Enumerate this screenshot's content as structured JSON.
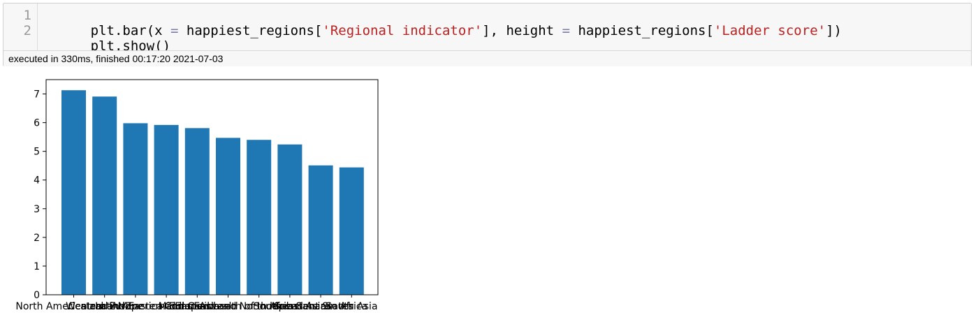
{
  "cell": {
    "lines": [
      {
        "number": "1",
        "parts": [
          {
            "text": "plt.bar(x ",
            "cls": ""
          },
          {
            "text": "=",
            "cls": "tok-op"
          },
          {
            "text": " happiest_regions[",
            "cls": ""
          },
          {
            "text": "'Regional indicator'",
            "cls": "tok-str"
          },
          {
            "text": "], height ",
            "cls": ""
          },
          {
            "text": "=",
            "cls": "tok-op"
          },
          {
            "text": " happiest_regions[",
            "cls": ""
          },
          {
            "text": "'Ladder score'",
            "cls": "tok-str"
          },
          {
            "text": "])",
            "cls": ""
          }
        ]
      },
      {
        "number": "2",
        "parts": [
          {
            "text": "plt.show()",
            "cls": ""
          }
        ]
      }
    ],
    "execution_status": "executed in 330ms, finished 00:17:20 2021-07-03"
  },
  "chart_data": {
    "type": "bar",
    "categories": [
      "North America and ANZ",
      "Western Europe",
      "Central and Eastern Europe",
      "Latin America and Caribbean",
      "East Asia",
      "Middle East and North Africa",
      "Commonwealth of Independent States",
      "Southeast Asia",
      "Sub-Saharan Africa",
      "South Asia"
    ],
    "values": [
      7.13,
      6.91,
      5.98,
      5.92,
      5.81,
      5.47,
      5.4,
      5.24,
      4.51,
      4.44
    ],
    "color": "#1f77b4",
    "ylim": [
      0,
      7.5
    ],
    "yticks": [
      0,
      1,
      2,
      3,
      4,
      5,
      6,
      7
    ],
    "title": "",
    "xlabel": "",
    "ylabel": "",
    "grid": false
  }
}
